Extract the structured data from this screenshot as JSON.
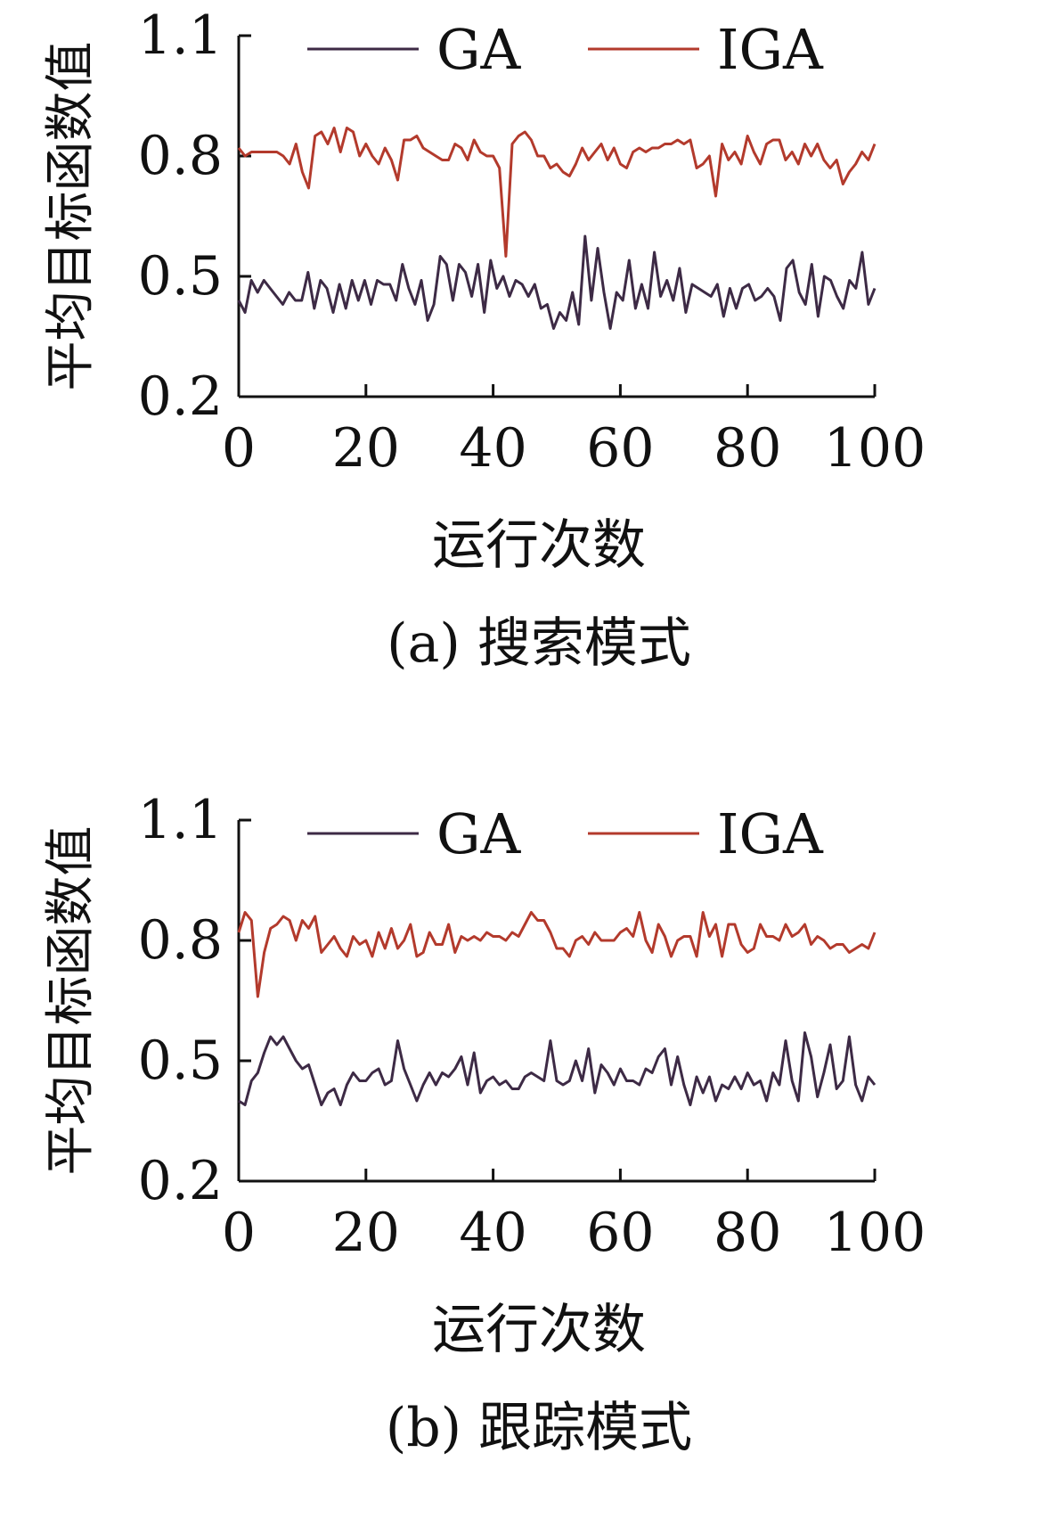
{
  "chart_data": [
    {
      "type": "line",
      "caption": "(a) 搜索模式",
      "xlabel": "运行次数",
      "ylabel": "平均目标函数值",
      "xlim": [
        0,
        100
      ],
      "ylim": [
        0.2,
        1.1
      ],
      "xticks": [
        "0",
        "20",
        "40",
        "60",
        "80",
        "100"
      ],
      "yticks": [
        "0.2",
        "0.5",
        "0.8",
        "1.1"
      ],
      "legend": "top",
      "grid": false,
      "series": [
        {
          "name": "GA",
          "color": "#3d2a45",
          "values": [
            0.44,
            0.41,
            0.49,
            0.46,
            0.49,
            0.47,
            0.45,
            0.43,
            0.46,
            0.44,
            0.44,
            0.51,
            0.42,
            0.49,
            0.47,
            0.41,
            0.48,
            0.42,
            0.49,
            0.44,
            0.49,
            0.43,
            0.49,
            0.48,
            0.48,
            0.44,
            0.53,
            0.47,
            0.43,
            0.49,
            0.39,
            0.43,
            0.55,
            0.53,
            0.44,
            0.53,
            0.51,
            0.45,
            0.53,
            0.41,
            0.54,
            0.47,
            0.5,
            0.45,
            0.49,
            0.48,
            0.45,
            0.48,
            0.42,
            0.43,
            0.37,
            0.41,
            0.39,
            0.46,
            0.38,
            0.6,
            0.44,
            0.57,
            0.46,
            0.37,
            0.46,
            0.44,
            0.54,
            0.42,
            0.48,
            0.42,
            0.56,
            0.45,
            0.49,
            0.44,
            0.52,
            0.41,
            0.48,
            0.47,
            0.46,
            0.45,
            0.48,
            0.4,
            0.47,
            0.42,
            0.47,
            0.48,
            0.44,
            0.45,
            0.47,
            0.45,
            0.39,
            0.52,
            0.54,
            0.46,
            0.43,
            0.53,
            0.4,
            0.5,
            0.49,
            0.45,
            0.42,
            0.49,
            0.47,
            0.56,
            0.43,
            0.47
          ]
        },
        {
          "name": "IGA",
          "color": "#b33a2c",
          "values": [
            0.82,
            0.8,
            0.81,
            0.81,
            0.81,
            0.81,
            0.81,
            0.8,
            0.78,
            0.83,
            0.76,
            0.72,
            0.85,
            0.86,
            0.83,
            0.87,
            0.81,
            0.87,
            0.86,
            0.8,
            0.83,
            0.8,
            0.78,
            0.82,
            0.79,
            0.74,
            0.84,
            0.84,
            0.85,
            0.82,
            0.81,
            0.8,
            0.79,
            0.79,
            0.83,
            0.82,
            0.79,
            0.84,
            0.81,
            0.8,
            0.8,
            0.77,
            0.55,
            0.83,
            0.85,
            0.86,
            0.84,
            0.8,
            0.8,
            0.77,
            0.78,
            0.76,
            0.75,
            0.78,
            0.82,
            0.79,
            0.81,
            0.83,
            0.79,
            0.82,
            0.78,
            0.77,
            0.81,
            0.82,
            0.81,
            0.82,
            0.82,
            0.83,
            0.83,
            0.84,
            0.83,
            0.84,
            0.77,
            0.78,
            0.8,
            0.7,
            0.83,
            0.79,
            0.81,
            0.78,
            0.85,
            0.81,
            0.78,
            0.83,
            0.84,
            0.84,
            0.79,
            0.81,
            0.78,
            0.83,
            0.8,
            0.83,
            0.79,
            0.77,
            0.79,
            0.73,
            0.76,
            0.78,
            0.81,
            0.79,
            0.83
          ]
        }
      ]
    },
    {
      "type": "line",
      "caption": "(b) 跟踪模式",
      "xlabel": "运行次数",
      "ylabel": "平均目标函数值",
      "xlim": [
        0,
        100
      ],
      "ylim": [
        0.2,
        1.1
      ],
      "xticks": [
        "0",
        "20",
        "40",
        "60",
        "80",
        "100"
      ],
      "yticks": [
        "0.2",
        "0.5",
        "0.8",
        "1.1"
      ],
      "legend": "top",
      "grid": false,
      "series": [
        {
          "name": "GA",
          "color": "#3d2a45",
          "values": [
            0.4,
            0.39,
            0.45,
            0.47,
            0.52,
            0.56,
            0.54,
            0.56,
            0.53,
            0.5,
            0.48,
            0.49,
            0.44,
            0.39,
            0.42,
            0.43,
            0.39,
            0.44,
            0.47,
            0.45,
            0.45,
            0.47,
            0.48,
            0.44,
            0.45,
            0.55,
            0.48,
            0.44,
            0.4,
            0.44,
            0.47,
            0.44,
            0.47,
            0.46,
            0.48,
            0.51,
            0.44,
            0.52,
            0.42,
            0.45,
            0.46,
            0.44,
            0.45,
            0.43,
            0.43,
            0.46,
            0.47,
            0.46,
            0.45,
            0.55,
            0.45,
            0.44,
            0.45,
            0.5,
            0.45,
            0.53,
            0.42,
            0.49,
            0.47,
            0.44,
            0.48,
            0.45,
            0.45,
            0.44,
            0.48,
            0.47,
            0.51,
            0.53,
            0.44,
            0.51,
            0.44,
            0.39,
            0.46,
            0.42,
            0.46,
            0.4,
            0.44,
            0.43,
            0.46,
            0.43,
            0.47,
            0.44,
            0.45,
            0.4,
            0.47,
            0.44,
            0.55,
            0.45,
            0.4,
            0.57,
            0.51,
            0.41,
            0.47,
            0.54,
            0.43,
            0.45,
            0.56,
            0.44,
            0.4,
            0.46,
            0.44
          ]
        },
        {
          "name": "IGA",
          "color": "#b33a2c",
          "values": [
            0.82,
            0.87,
            0.85,
            0.66,
            0.77,
            0.83,
            0.84,
            0.86,
            0.85,
            0.8,
            0.85,
            0.83,
            0.86,
            0.77,
            0.79,
            0.81,
            0.78,
            0.76,
            0.81,
            0.79,
            0.8,
            0.76,
            0.82,
            0.78,
            0.83,
            0.78,
            0.8,
            0.84,
            0.76,
            0.77,
            0.82,
            0.79,
            0.79,
            0.84,
            0.77,
            0.81,
            0.8,
            0.81,
            0.8,
            0.82,
            0.81,
            0.81,
            0.8,
            0.82,
            0.81,
            0.84,
            0.87,
            0.85,
            0.85,
            0.82,
            0.78,
            0.78,
            0.76,
            0.8,
            0.81,
            0.79,
            0.82,
            0.8,
            0.8,
            0.8,
            0.82,
            0.83,
            0.81,
            0.87,
            0.8,
            0.77,
            0.84,
            0.81,
            0.76,
            0.8,
            0.81,
            0.81,
            0.76,
            0.87,
            0.81,
            0.84,
            0.76,
            0.84,
            0.84,
            0.79,
            0.77,
            0.78,
            0.84,
            0.81,
            0.81,
            0.8,
            0.84,
            0.81,
            0.82,
            0.84,
            0.79,
            0.81,
            0.8,
            0.78,
            0.79,
            0.79,
            0.77,
            0.78,
            0.79,
            0.78,
            0.82
          ]
        }
      ]
    }
  ]
}
